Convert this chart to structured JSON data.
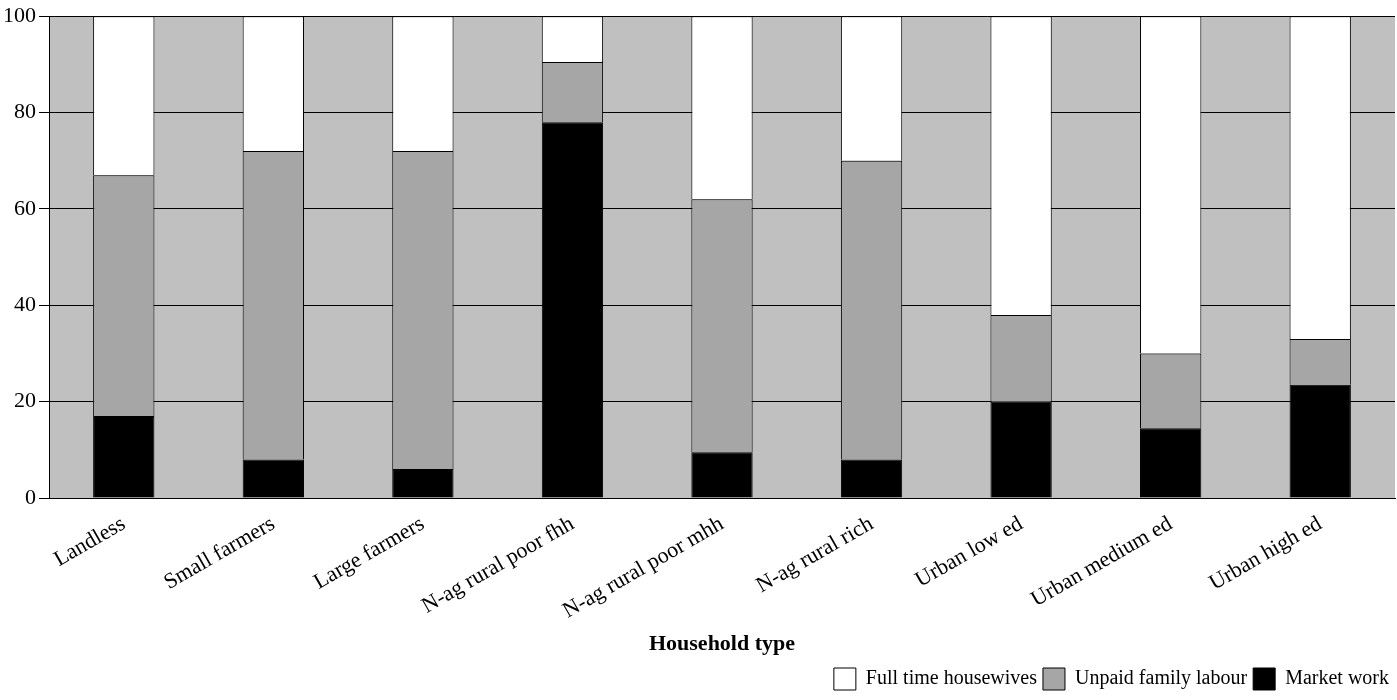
{
  "chart_data": {
    "type": "bar",
    "stacked": true,
    "xlabel": "Household type",
    "categories": [
      "Landless",
      "Small farmers",
      "Large farmers",
      "N-ag rural poor fhh",
      "N-ag rural poor mhh",
      "N-ag rural rich",
      "Urban low ed",
      "Urban medium ed",
      "Urban high ed"
    ],
    "series": [
      {
        "name": "Market work",
        "color": "#000000",
        "values": [
          17,
          8,
          6,
          78,
          9.5,
          8,
          20,
          14.5,
          23.5
        ]
      },
      {
        "name": "Unpaid family labour",
        "color": "#a6a6a6",
        "values": [
          50,
          64,
          66,
          12.5,
          52.5,
          62,
          18,
          15.5,
          9.5
        ]
      },
      {
        "name": "Full time housewives",
        "color": "#ffffff",
        "values": [
          33,
          28,
          28,
          9.5,
          38,
          30,
          62,
          70,
          67
        ]
      }
    ],
    "ylim": [
      0,
      100
    ],
    "yticks": [
      0,
      20,
      40,
      60,
      80,
      100
    ],
    "grid": "y",
    "legend": "bottom right"
  }
}
